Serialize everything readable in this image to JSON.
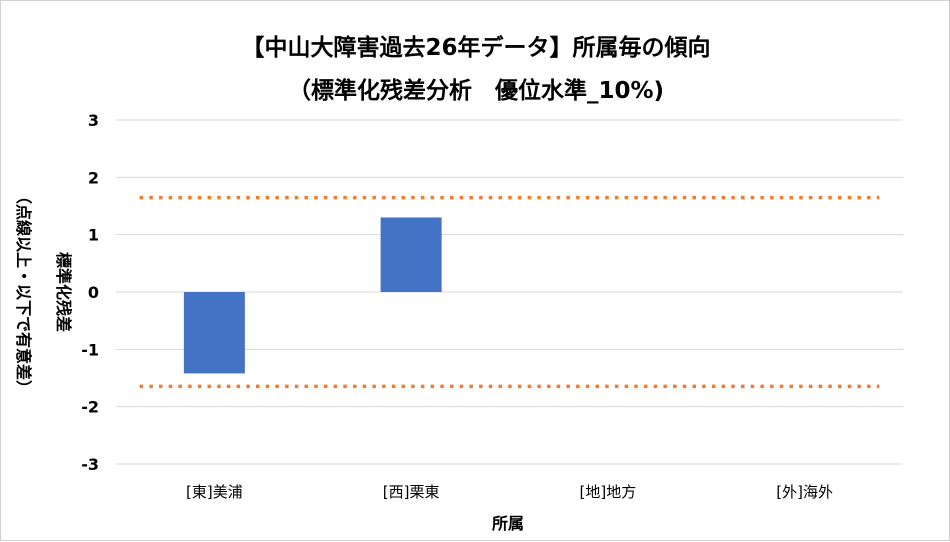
{
  "chart_data": {
    "type": "bar",
    "title": [
      "【中山大障害過去26年データ】所属毎の傾向",
      "（標準化残差分析　優位水準_10%)"
    ],
    "xlabel": "所属",
    "ylabel": [
      "標準化残差",
      "（点線以上・以下で有意差）"
    ],
    "categories": [
      "[東]美浦",
      "[西]栗東",
      "[地]地方",
      "[外]海外"
    ],
    "values": [
      -1.42,
      1.3,
      null,
      null
    ],
    "ylim": [
      -3,
      3
    ],
    "yticks": [
      3,
      2,
      1,
      0,
      -1,
      -2,
      -3
    ],
    "thresholds": [
      1.645,
      -1.645
    ],
    "grid": true,
    "legend": "none",
    "colors": {
      "bar": "#4472C4",
      "threshold": "#ED7D31",
      "grid": "#d9d9d9"
    }
  }
}
